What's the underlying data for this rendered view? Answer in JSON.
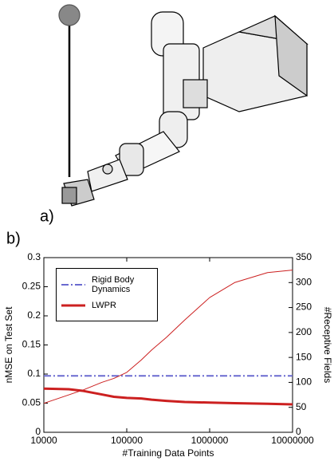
{
  "panel_labels": [
    "a)",
    "b)"
  ],
  "chart_data": {
    "type": "line",
    "xlabel": "#Training Data Points",
    "ylabel": "nMSE on Test Set",
    "y2label": "#Receptive Fields",
    "xscale": "log",
    "x": [
      10000,
      20000,
      30000,
      50000,
      70000,
      100000,
      150000,
      200000,
      300000,
      500000,
      1000000,
      2000000,
      5000000,
      10000000
    ],
    "xlim": [
      10000,
      10000000
    ],
    "xticks": [
      10000,
      100000,
      1000000,
      10000000
    ],
    "ylim": [
      0,
      0.3
    ],
    "yticks": [
      0,
      0.05,
      0.1,
      0.15,
      0.2,
      0.25,
      0.3
    ],
    "y2lim": [
      0,
      350
    ],
    "y2ticks": [
      0,
      50,
      100,
      150,
      200,
      250,
      300,
      350
    ],
    "grid": false,
    "legend": "upper-left",
    "series": [
      {
        "name": "Rigid Body Dynamics",
        "color": "#6a6ad0",
        "style": "dashdot",
        "values": [
          0.097,
          0.097,
          0.097,
          0.097,
          0.097,
          0.097,
          0.097,
          0.097,
          0.097,
          0.097,
          0.097,
          0.097,
          0.097,
          0.097
        ]
      },
      {
        "name": "LWPR",
        "color": "#cc2020",
        "style": "thick",
        "values": [
          0.075,
          0.074,
          0.071,
          0.065,
          0.061,
          0.059,
          0.058,
          0.056,
          0.054,
          0.052,
          0.051,
          0.05,
          0.049,
          0.048
        ]
      },
      {
        "color": "#cc2020",
        "style": "thin",
        "axis": "y2",
        "values": [
          58,
          75,
          85,
          100,
          108,
          120,
          145,
          165,
          190,
          225,
          270,
          300,
          320,
          325
        ]
      }
    ]
  }
}
